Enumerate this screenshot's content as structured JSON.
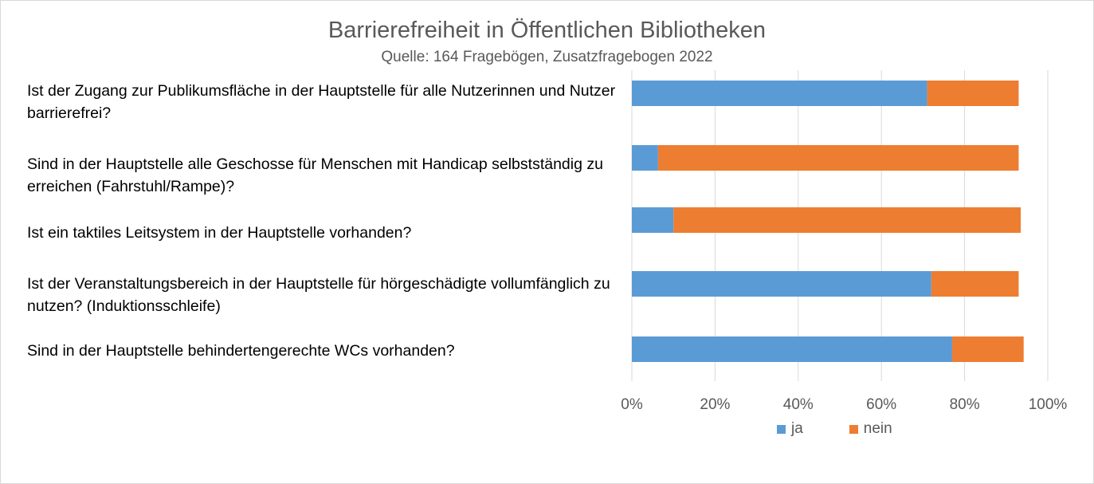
{
  "chart_data": {
    "type": "bar",
    "orientation": "horizontal",
    "stacked": true,
    "title": "Barrierefreiheit in Öffentlichen Bibliotheken",
    "subtitle": "Quelle: 164 Fragebögen, Zusatzfragebogen 2022",
    "categories": [
      "Ist der Zugang zur Publikumsfläche in der Hauptstelle für alle Nutzerinnen und Nutzer barrierefrei?",
      "Sind in der Hauptstelle alle Geschosse für Menschen mit Handicap selbstständig zu erreichen (Fahrstuhl/Rampe)?",
      "Ist ein taktiles Leitsystem in der Hauptstelle vorhanden?",
      "Ist der Veranstaltungsbereich in der Hauptstelle für hörgeschädigte vollumfänglich zu nutzen? (Induktionsschleife)",
      "Sind in der Hauptstelle behindertengerechte WCs vorhanden?"
    ],
    "series": [
      {
        "name": "ja",
        "color": "#5b9bd5",
        "values": [
          71,
          6.3,
          10,
          72,
          77
        ]
      },
      {
        "name": "nein",
        "color": "#ed7d31",
        "values": [
          22,
          86.7,
          83.5,
          21,
          17.2
        ]
      }
    ],
    "xlim": [
      0,
      100
    ],
    "x_ticks": [
      "0%",
      "20%",
      "40%",
      "60%",
      "80%",
      "100%"
    ],
    "x_tick_values": [
      0,
      20,
      40,
      60,
      80,
      100
    ],
    "grid": true,
    "legend_position": "bottom"
  }
}
